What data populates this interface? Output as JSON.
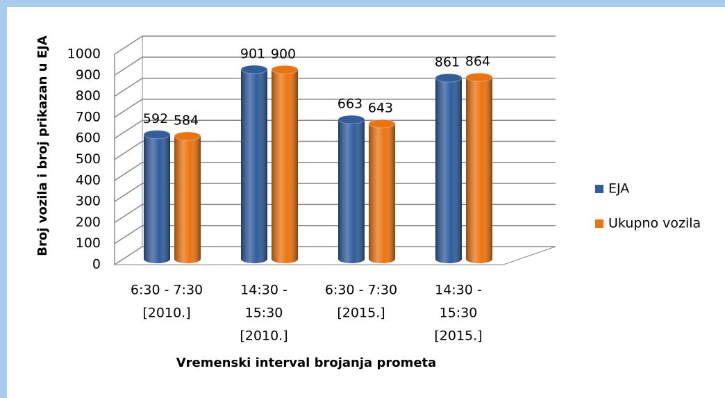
{
  "chart_data": {
    "type": "bar3d",
    "x_label": "Vremenski interval brojanja prometa",
    "y_label": "Broj vozila i broj prikazan u EJA",
    "categories": [
      [
        "6:30 - 7:30",
        "[2010.]"
      ],
      [
        "14:30 -",
        "15:30",
        "[2010.]"
      ],
      [
        "6:30 - 7:30",
        "[2015.]"
      ],
      [
        "14:30 -",
        "15:30",
        "[2015.]"
      ]
    ],
    "series": [
      {
        "name": "EJA",
        "color": "#2f5d9e",
        "values": [
          592,
          901,
          663,
          861
        ]
      },
      {
        "name": "Ukupno vozila",
        "color": "#ec7410",
        "values": [
          584,
          900,
          643,
          864
        ]
      }
    ],
    "ylim": [
      0,
      1000
    ],
    "yticks": [
      0,
      100,
      200,
      300,
      400,
      500,
      600,
      700,
      800,
      900,
      1000
    ],
    "grid": true,
    "legend": "right"
  }
}
